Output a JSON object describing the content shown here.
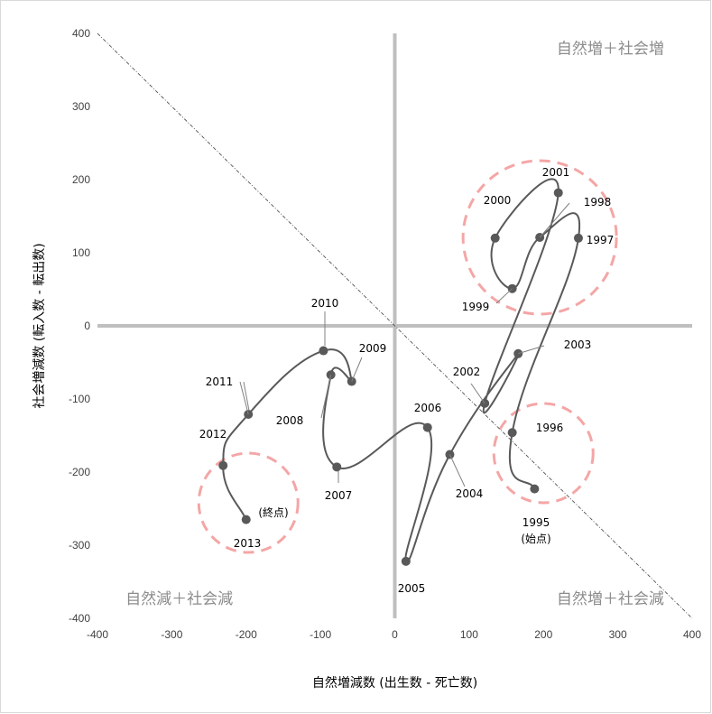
{
  "chart_data": {
    "type": "scatter",
    "xlabel": "自然増減数 (出生数 - 死亡数)",
    "ylabel": "社会増減数 (転入数 - 転出数)",
    "xlim": [
      -400,
      400
    ],
    "ylim": [
      -400,
      400
    ],
    "xticks": [
      -400,
      -300,
      -200,
      -100,
      0,
      100,
      200,
      300,
      400
    ],
    "yticks": [
      -400,
      -300,
      -200,
      -100,
      0,
      100,
      200,
      300,
      400
    ],
    "grid": false,
    "points": [
      {
        "year": "1995",
        "x": 188,
        "y": -223
      },
      {
        "year": "1996",
        "x": 158,
        "y": -146
      },
      {
        "year": "1997",
        "x": 247,
        "y": 120
      },
      {
        "year": "1998",
        "x": 195,
        "y": 121
      },
      {
        "year": "1999",
        "x": 158,
        "y": 51
      },
      {
        "year": "2000",
        "x": 135,
        "y": 120
      },
      {
        "year": "2001",
        "x": 220,
        "y": 182
      },
      {
        "year": "2002",
        "x": 121,
        "y": -106
      },
      {
        "year": "2003",
        "x": 166,
        "y": -38
      },
      {
        "year": "2004",
        "x": 74,
        "y": -176
      },
      {
        "year": "2005",
        "x": 15,
        "y": -322
      },
      {
        "year": "2006",
        "x": 44,
        "y": -139
      },
      {
        "year": "2007",
        "x": -78,
        "y": -193
      },
      {
        "year": "2008",
        "x": -86,
        "y": -67
      },
      {
        "year": "2009",
        "x": -58,
        "y": -76
      },
      {
        "year": "2010",
        "x": -96,
        "y": -34
      },
      {
        "year": "2011",
        "x": -197,
        "y": -121
      },
      {
        "year": "2012",
        "x": -231,
        "y": -191
      },
      {
        "year": "2013",
        "x": -200,
        "y": -265
      }
    ],
    "point_labels": {
      "1995": [
        "1995",
        "(始点)"
      ],
      "2013": [
        "2013"
      ]
    },
    "extra_labels": {
      "end": "(終点)"
    },
    "quadrant_labels": {
      "top_right": "自然増＋社会増",
      "bottom_left": "自然減＋社会減",
      "bottom_right": "自然増＋社会減"
    },
    "colors": {
      "line": "#595959",
      "point": "#595959",
      "axes_zero": "#bfbfbf",
      "circle": "#f4a6a6",
      "diagonal": "#404040",
      "quadrant_text": "#8c8c8c"
    }
  }
}
